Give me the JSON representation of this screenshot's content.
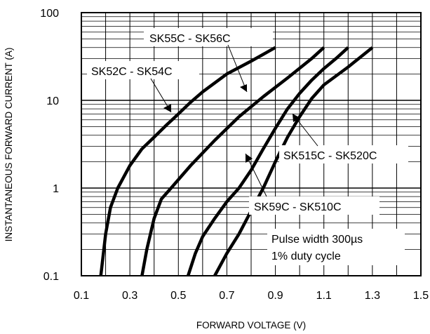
{
  "chart_data": {
    "type": "line",
    "xlabel": "FORWARD VOLTAGE (V)",
    "ylabel": "INSTANTANEOUS FORWARD CURRENT (A)",
    "x_scale": "linear",
    "y_scale": "log",
    "xlim": [
      0.1,
      1.5
    ],
    "ylim": [
      0.1,
      100
    ],
    "x_ticks": [
      "0.1",
      "0.3",
      "0.5",
      "0.7",
      "0.9",
      "1.1",
      "1.3",
      "1.5"
    ],
    "y_ticks": [
      "0.1",
      "1",
      "10",
      "100"
    ],
    "grid": true,
    "series": [
      {
        "name": "SK52C - SK54C",
        "points": [
          [
            0.18,
            0.1
          ],
          [
            0.2,
            0.3
          ],
          [
            0.22,
            0.6
          ],
          [
            0.25,
            1
          ],
          [
            0.3,
            1.8
          ],
          [
            0.35,
            2.8
          ],
          [
            0.4,
            3.8
          ],
          [
            0.45,
            5.2
          ],
          [
            0.5,
            7
          ],
          [
            0.55,
            9.5
          ],
          [
            0.6,
            12.5
          ],
          [
            0.7,
            20
          ],
          [
            0.8,
            28
          ],
          [
            0.9,
            40
          ]
        ]
      },
      {
        "name": "SK55C - SK56C",
        "points": [
          [
            0.35,
            0.1
          ],
          [
            0.37,
            0.2
          ],
          [
            0.4,
            0.45
          ],
          [
            0.43,
            0.75
          ],
          [
            0.47,
            1
          ],
          [
            0.55,
            1.8
          ],
          [
            0.65,
            3.5
          ],
          [
            0.75,
            6.5
          ],
          [
            0.85,
            11
          ],
          [
            0.95,
            18
          ],
          [
            1.05,
            30
          ],
          [
            1.1,
            40
          ]
        ]
      },
      {
        "name": "SK59C - SK510C",
        "points": [
          [
            0.54,
            0.1
          ],
          [
            0.57,
            0.18
          ],
          [
            0.6,
            0.28
          ],
          [
            0.65,
            0.45
          ],
          [
            0.7,
            0.7
          ],
          [
            0.75,
            1
          ],
          [
            0.8,
            1.6
          ],
          [
            0.85,
            2.8
          ],
          [
            0.9,
            4.8
          ],
          [
            0.95,
            8
          ],
          [
            1.0,
            12
          ],
          [
            1.05,
            17
          ],
          [
            1.1,
            23
          ],
          [
            1.15,
            30
          ],
          [
            1.2,
            40
          ]
        ]
      },
      {
        "name": "SK515C - SK520C",
        "points": [
          [
            0.65,
            0.1
          ],
          [
            0.7,
            0.18
          ],
          [
            0.75,
            0.3
          ],
          [
            0.8,
            0.55
          ],
          [
            0.85,
            1
          ],
          [
            0.9,
            2
          ],
          [
            0.95,
            3.8
          ],
          [
            1.0,
            6.5
          ],
          [
            1.05,
            10.5
          ],
          [
            1.1,
            15
          ],
          [
            1.2,
            24
          ],
          [
            1.3,
            40
          ]
        ]
      }
    ],
    "annotations": [
      "SK55C - SK56C",
      "SK52C - SK54C",
      "SK515C - SK520C",
      "SK59C - SK510C",
      "Pulse width 300µs",
      "1% duty cycle"
    ]
  }
}
